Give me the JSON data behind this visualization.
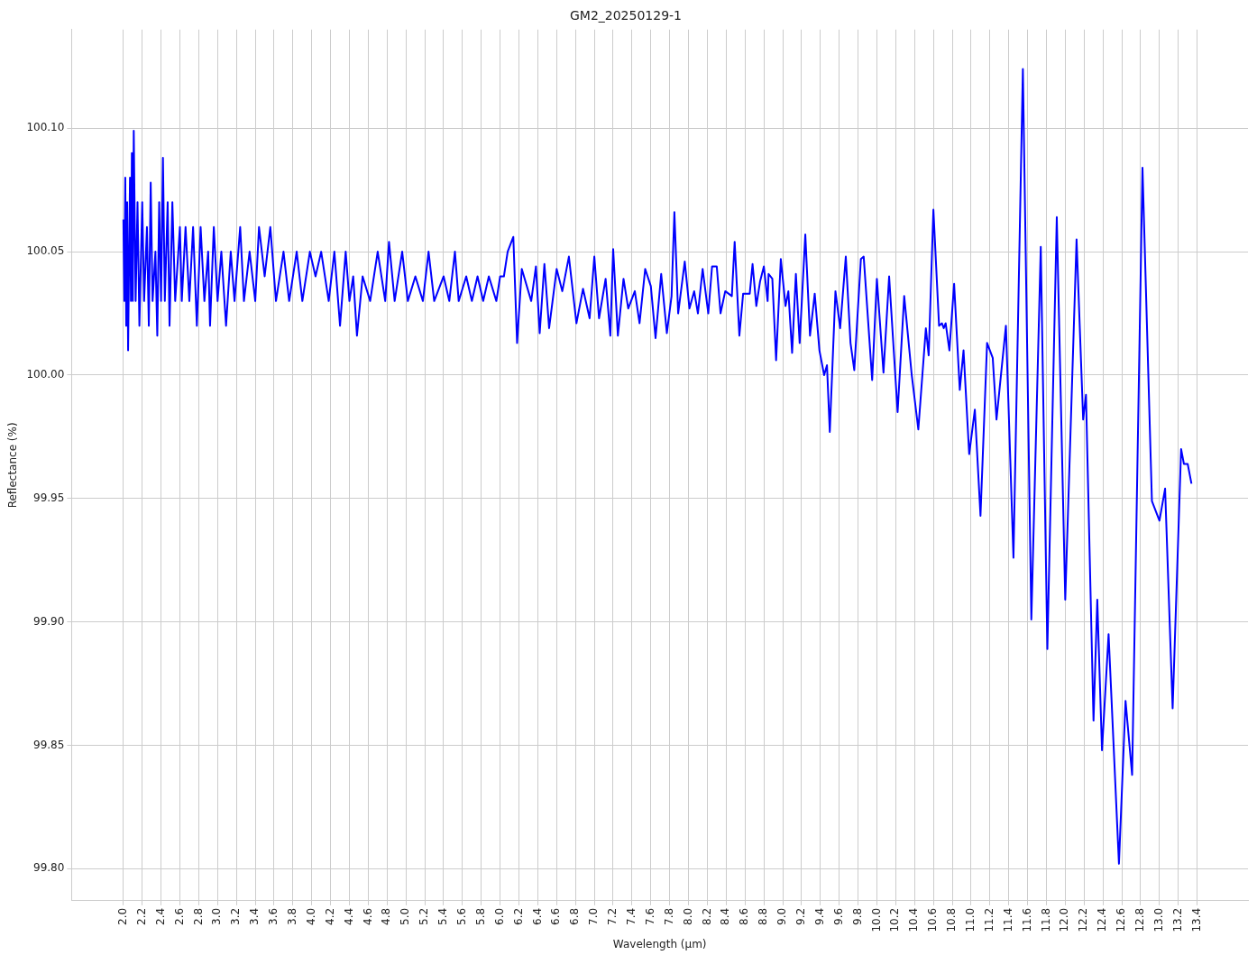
{
  "chart_data": {
    "type": "line",
    "title": "GM2_20250129-1",
    "xlabel": "Wavelength (µm)",
    "ylabel": "Reflectance (%)",
    "xlim": [
      1.45,
      13.94
    ],
    "ylim": [
      99.787,
      100.14
    ],
    "xticks": [
      {
        "value": 2.0,
        "label": "2.0"
      },
      {
        "value": 2.2,
        "label": "2.2"
      },
      {
        "value": 2.4,
        "label": "2.4"
      },
      {
        "value": 2.6,
        "label": "2.6"
      },
      {
        "value": 2.8,
        "label": "2.8"
      },
      {
        "value": 3.0,
        "label": "3.0"
      },
      {
        "value": 3.2,
        "label": "3.2"
      },
      {
        "value": 3.4,
        "label": "3.4"
      },
      {
        "value": 3.6,
        "label": "3.6"
      },
      {
        "value": 3.8,
        "label": "3.8"
      },
      {
        "value": 4.0,
        "label": "4.0"
      },
      {
        "value": 4.2,
        "label": "4.2"
      },
      {
        "value": 4.4,
        "label": "4.4"
      },
      {
        "value": 4.6,
        "label": "4.6"
      },
      {
        "value": 4.8,
        "label": "4.8"
      },
      {
        "value": 5.0,
        "label": "5.0"
      },
      {
        "value": 5.2,
        "label": "5.2"
      },
      {
        "value": 5.4,
        "label": "5.4"
      },
      {
        "value": 5.6,
        "label": "5.6"
      },
      {
        "value": 5.8,
        "label": "5.8"
      },
      {
        "value": 6.0,
        "label": "6.0"
      },
      {
        "value": 6.2,
        "label": "6.2"
      },
      {
        "value": 6.4,
        "label": "6.4"
      },
      {
        "value": 6.6,
        "label": "6.6"
      },
      {
        "value": 6.8,
        "label": "6.8"
      },
      {
        "value": 7.0,
        "label": "7.0"
      },
      {
        "value": 7.2,
        "label": "7.2"
      },
      {
        "value": 7.4,
        "label": "7.4"
      },
      {
        "value": 7.6,
        "label": "7.6"
      },
      {
        "value": 7.8,
        "label": "7.8"
      },
      {
        "value": 8.0,
        "label": "8.0"
      },
      {
        "value": 8.2,
        "label": "8.2"
      },
      {
        "value": 8.4,
        "label": "8.4"
      },
      {
        "value": 8.6,
        "label": "8.6"
      },
      {
        "value": 8.8,
        "label": "8.8"
      },
      {
        "value": 9.0,
        "label": "9.0"
      },
      {
        "value": 9.2,
        "label": "9.2"
      },
      {
        "value": 9.4,
        "label": "9.4"
      },
      {
        "value": 9.6,
        "label": "9.6"
      },
      {
        "value": 9.8,
        "label": "9.8"
      },
      {
        "value": 10.0,
        "label": "10.0"
      },
      {
        "value": 10.2,
        "label": "10.2"
      },
      {
        "value": 10.4,
        "label": "10.4"
      },
      {
        "value": 10.6,
        "label": "10.6"
      },
      {
        "value": 10.8,
        "label": "10.8"
      },
      {
        "value": 11.0,
        "label": "11.0"
      },
      {
        "value": 11.2,
        "label": "11.2"
      },
      {
        "value": 11.4,
        "label": "11.4"
      },
      {
        "value": 11.6,
        "label": "11.6"
      },
      {
        "value": 11.8,
        "label": "11.8"
      },
      {
        "value": 12.0,
        "label": "12.0"
      },
      {
        "value": 12.2,
        "label": "12.2"
      },
      {
        "value": 12.4,
        "label": "12.4"
      },
      {
        "value": 12.6,
        "label": "12.6"
      },
      {
        "value": 12.8,
        "label": "12.8"
      },
      {
        "value": 13.0,
        "label": "13.0"
      },
      {
        "value": 13.2,
        "label": "13.2"
      },
      {
        "value": 13.4,
        "label": "13.4"
      }
    ],
    "yticks": [
      {
        "value": 99.8,
        "label": "99.80"
      },
      {
        "value": 99.85,
        "label": "99.85"
      },
      {
        "value": 99.9,
        "label": "99.90"
      },
      {
        "value": 99.95,
        "label": "99.95"
      },
      {
        "value": 100.0,
        "label": "100.00"
      },
      {
        "value": 100.05,
        "label": "100.05"
      },
      {
        "value": 100.1,
        "label": "100.10"
      }
    ],
    "grid": true,
    "legend": false,
    "marker": "none",
    "line_style": "solid",
    "series": [
      {
        "color": "#0000ff",
        "x": [
          2.0,
          2.01,
          2.02,
          2.03,
          2.04,
          2.05,
          2.07,
          2.08,
          2.09,
          2.1,
          2.11,
          2.13,
          2.15,
          2.17,
          2.2,
          2.22,
          2.25,
          2.27,
          2.29,
          2.31,
          2.34,
          2.36,
          2.38,
          2.4,
          2.42,
          2.44,
          2.47,
          2.49,
          2.52,
          2.55,
          2.6,
          2.62,
          2.66,
          2.7,
          2.74,
          2.78,
          2.82,
          2.86,
          2.9,
          2.92,
          2.96,
          3.0,
          3.04,
          3.09,
          3.14,
          3.18,
          3.24,
          3.28,
          3.34,
          3.4,
          3.44,
          3.5,
          3.56,
          3.62,
          3.7,
          3.76,
          3.84,
          3.9,
          3.98,
          4.04,
          4.1,
          4.18,
          4.24,
          4.3,
          4.36,
          4.4,
          4.44,
          4.48,
          4.54,
          4.62,
          4.7,
          4.78,
          4.82,
          4.88,
          4.96,
          5.02,
          5.1,
          5.18,
          5.24,
          5.3,
          5.4,
          5.46,
          5.52,
          5.56,
          5.64,
          5.7,
          5.76,
          5.82,
          5.88,
          5.96,
          6.0,
          6.04,
          6.08,
          6.14,
          6.18,
          6.23,
          6.33,
          6.38,
          6.42,
          6.47,
          6.52,
          6.6,
          6.66,
          6.73,
          6.81,
          6.88,
          6.95,
          7.0,
          7.05,
          7.12,
          7.17,
          7.2,
          7.25,
          7.31,
          7.36,
          7.43,
          7.48,
          7.54,
          7.6,
          7.65,
          7.71,
          7.77,
          7.82,
          7.85,
          7.89,
          7.96,
          8.01,
          8.06,
          8.1,
          8.15,
          8.21,
          8.25,
          8.3,
          8.34,
          8.39,
          8.46,
          8.49,
          8.54,
          8.58,
          8.65,
          8.68,
          8.72,
          8.76,
          8.8,
          8.84,
          8.85,
          8.89,
          8.93,
          8.98,
          9.03,
          9.06,
          9.1,
          9.14,
          9.18,
          9.24,
          9.29,
          9.34,
          9.39,
          9.44,
          9.47,
          9.5,
          9.56,
          9.61,
          9.67,
          9.72,
          9.76,
          9.83,
          9.86,
          9.95,
          10.0,
          10.07,
          10.13,
          10.22,
          10.29,
          10.37,
          10.44,
          10.52,
          10.55,
          10.6,
          10.66,
          10.69,
          10.71,
          10.73,
          10.77,
          10.82,
          10.88,
          10.92,
          10.98,
          11.04,
          11.1,
          11.17,
          11.23,
          11.27,
          11.37,
          11.45,
          11.55,
          11.64,
          11.74,
          11.81,
          11.91,
          12.0,
          12.12,
          12.19,
          12.22,
          12.3,
          12.34,
          12.39,
          12.46,
          12.57,
          12.64,
          12.71,
          12.82,
          12.92,
          13.0,
          13.06,
          13.14,
          13.23,
          13.26,
          13.3,
          13.34
        ],
        "values": [
          100.063,
          100.03,
          100.08,
          100.02,
          100.07,
          100.01,
          100.08,
          100.03,
          100.09,
          100.03,
          100.099,
          100.03,
          100.07,
          100.02,
          100.07,
          100.03,
          100.06,
          100.02,
          100.078,
          100.03,
          100.05,
          100.016,
          100.07,
          100.03,
          100.088,
          100.03,
          100.07,
          100.02,
          100.07,
          100.03,
          100.06,
          100.03,
          100.06,
          100.03,
          100.06,
          100.02,
          100.06,
          100.03,
          100.05,
          100.02,
          100.06,
          100.03,
          100.05,
          100.02,
          100.05,
          100.03,
          100.06,
          100.03,
          100.05,
          100.03,
          100.06,
          100.04,
          100.06,
          100.03,
          100.05,
          100.03,
          100.05,
          100.03,
          100.05,
          100.04,
          100.05,
          100.03,
          100.05,
          100.02,
          100.05,
          100.03,
          100.04,
          100.016,
          100.04,
          100.03,
          100.05,
          100.03,
          100.054,
          100.03,
          100.05,
          100.03,
          100.04,
          100.03,
          100.05,
          100.03,
          100.04,
          100.03,
          100.05,
          100.03,
          100.04,
          100.03,
          100.04,
          100.03,
          100.04,
          100.03,
          100.04,
          100.04,
          100.05,
          100.056,
          100.013,
          100.043,
          100.03,
          100.044,
          100.017,
          100.045,
          100.019,
          100.043,
          100.034,
          100.048,
          100.021,
          100.035,
          100.023,
          100.048,
          100.023,
          100.039,
          100.016,
          100.051,
          100.016,
          100.039,
          100.027,
          100.034,
          100.021,
          100.043,
          100.036,
          100.015,
          100.041,
          100.017,
          100.032,
          100.066,
          100.025,
          100.046,
          100.027,
          100.034,
          100.025,
          100.043,
          100.025,
          100.044,
          100.044,
          100.025,
          100.034,
          100.032,
          100.054,
          100.016,
          100.033,
          100.033,
          100.045,
          100.028,
          100.038,
          100.044,
          100.03,
          100.041,
          100.039,
          100.006,
          100.047,
          100.028,
          100.034,
          100.009,
          100.041,
          100.013,
          100.057,
          100.016,
          100.033,
          100.01,
          100.0,
          100.004,
          99.977,
          100.034,
          100.019,
          100.048,
          100.013,
          100.002,
          100.047,
          100.048,
          99.998,
          100.039,
          100.001,
          100.04,
          99.985,
          100.032,
          100.0,
          99.978,
          100.019,
          100.008,
          100.067,
          100.02,
          100.021,
          100.019,
          100.021,
          100.01,
          100.037,
          99.994,
          100.01,
          99.968,
          99.986,
          99.943,
          100.013,
          100.007,
          99.982,
          100.02,
          99.926,
          100.124,
          99.901,
          100.052,
          99.889,
          100.064,
          99.909,
          100.055,
          99.982,
          99.992,
          99.86,
          99.909,
          99.848,
          99.895,
          99.802,
          99.868,
          99.838,
          100.084,
          99.949,
          99.941,
          99.954,
          99.865,
          99.97,
          99.964,
          99.964,
          99.956
        ]
      }
    ]
  }
}
